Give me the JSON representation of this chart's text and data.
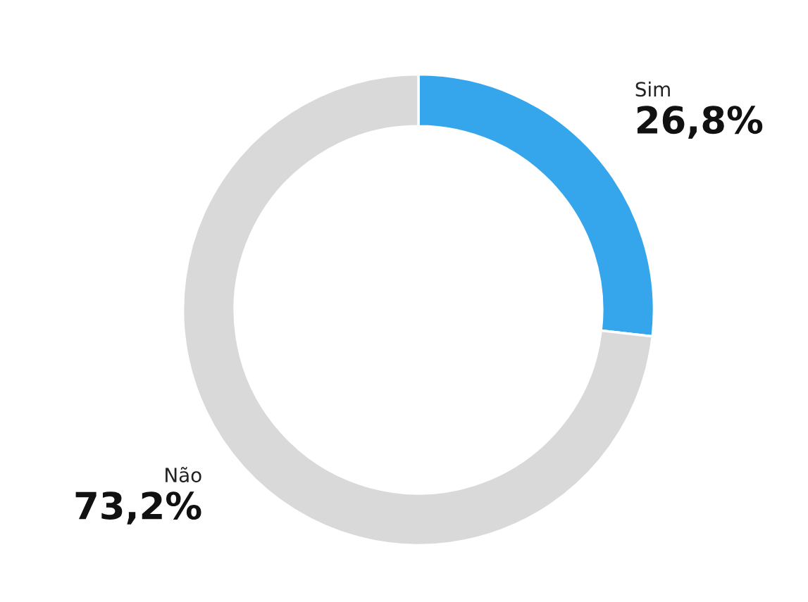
{
  "chart_data": {
    "type": "donut",
    "categories": [
      "Sim",
      "Não"
    ],
    "values": [
      26.8,
      73.2
    ],
    "colors": [
      "#35a6ec",
      "#d9d9d9"
    ],
    "value_labels": [
      "26,8%",
      "73,2%"
    ],
    "legend": false
  }
}
